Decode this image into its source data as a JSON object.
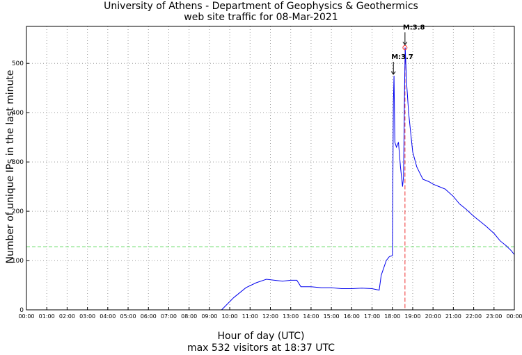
{
  "chart_data": {
    "type": "line",
    "title": "University of Athens - Department of Geophysics & Geothermics",
    "subtitle": "web site traffic for 08-Mar-2021",
    "xlabel": "Hour of day (UTC)",
    "footer": "max 532 visitors at 18:37 UTC",
    "ylabel": "Number of unique IPs in the last minute",
    "xlim": [
      0,
      24
    ],
    "ylim": [
      0,
      575
    ],
    "x_ticks": [
      "00:00",
      "01:00",
      "02:00",
      "03:00",
      "04:00",
      "05:00",
      "06:00",
      "07:00",
      "08:00",
      "09:00",
      "10:00",
      "11:00",
      "12:00",
      "13:00",
      "14:00",
      "15:00",
      "16:00",
      "17:00",
      "18:00",
      "19:00",
      "20:00",
      "21:00",
      "22:00",
      "23:00",
      "00:00"
    ],
    "y_ticks": [
      0,
      100,
      200,
      300,
      400,
      500
    ],
    "grid": true,
    "reference_line": {
      "value": 128,
      "color": "#66dd66"
    },
    "max_marker": {
      "hour": 18.62,
      "value": 532,
      "color": "#ee3333"
    },
    "annotations": [
      {
        "label": "M:3.7",
        "hour": 18.05,
        "value": 475
      },
      {
        "label": "M:3.8",
        "hour": 18.62,
        "value": 535
      }
    ],
    "series": [
      {
        "color": "#0000ee",
        "x": [
          7.5,
          9.6,
          10.2,
          10.8,
          11.3,
          11.8,
          12.2,
          12.6,
          13.0,
          13.3,
          13.5,
          14.0,
          14.5,
          15.0,
          15.5,
          16.0,
          16.5,
          17.0,
          17.35,
          17.45,
          17.7,
          17.85,
          18.0,
          18.05,
          18.08,
          18.12,
          18.2,
          18.3,
          18.4,
          18.5,
          18.55,
          18.6,
          18.63,
          18.7,
          18.8,
          18.9,
          19.0,
          19.2,
          19.5,
          19.8,
          20.0,
          20.3,
          20.6,
          21.0,
          21.3,
          21.6,
          22.0,
          22.3,
          22.6,
          23.0,
          23.3,
          23.6,
          23.85,
          24.0
        ],
        "y": [
          0,
          0,
          25,
          45,
          55,
          62,
          60,
          58,
          60,
          60,
          47,
          47,
          45,
          45,
          43,
          43,
          44,
          43,
          40,
          70,
          100,
          108,
          110,
          420,
          475,
          340,
          330,
          340,
          290,
          250,
          270,
          450,
          532,
          460,
          400,
          360,
          320,
          290,
          265,
          260,
          255,
          250,
          245,
          230,
          215,
          205,
          190,
          180,
          170,
          155,
          140,
          130,
          120,
          112
        ]
      }
    ]
  }
}
